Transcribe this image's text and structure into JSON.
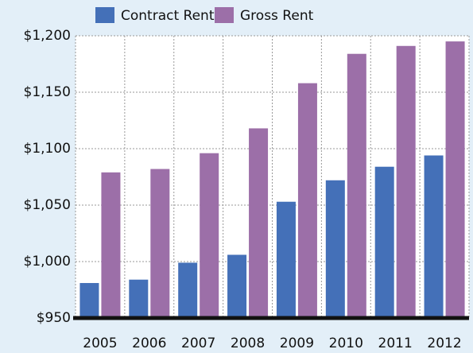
{
  "chart_data": {
    "type": "bar",
    "categories": [
      "2005",
      "2006",
      "2007",
      "2008",
      "2009",
      "2010",
      "2011",
      "2012"
    ],
    "series": [
      {
        "name": "Contract Rent",
        "color": "#4470b8",
        "values": [
          981,
          984,
          999,
          1006,
          1053,
          1072,
          1084,
          1094
        ]
      },
      {
        "name": "Gross Rent",
        "color": "#9c6fa8",
        "values": [
          1079,
          1082,
          1096,
          1118,
          1158,
          1184,
          1191,
          1195
        ]
      }
    ],
    "ylim": [
      950,
      1200
    ],
    "yticks": [
      {
        "value": 950,
        "label": "$950"
      },
      {
        "value": 1000,
        "label": "$1,000"
      },
      {
        "value": 1050,
        "label": "$1,050"
      },
      {
        "value": 1100,
        "label": "$1,100"
      },
      {
        "value": 1150,
        "label": "$1,150"
      },
      {
        "value": 1200,
        "label": "$1,200"
      }
    ],
    "grid": true
  }
}
